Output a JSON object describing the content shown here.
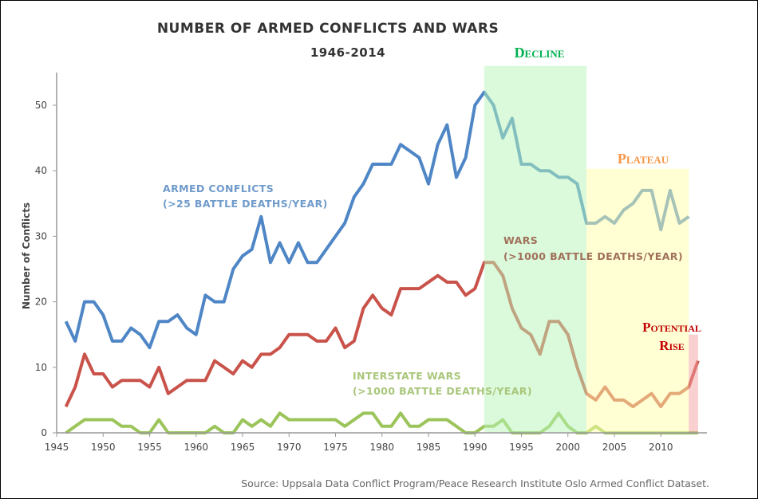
{
  "chart_data": {
    "type": "line",
    "title": "NUMBER OF ARMED CONFLICTS AND WARS",
    "subtitle": "1946-2014",
    "xlabel": "",
    "ylabel": "Number of Conflicts",
    "xlim": [
      1945,
      2015
    ],
    "ylim": [
      0,
      55
    ],
    "xticks": [
      "1945",
      "1950",
      "1955",
      "1960",
      "1965",
      "1970",
      "1975",
      "1980",
      "1985",
      "1990",
      "1995",
      "2000",
      "2005",
      "2010"
    ],
    "yticks": [
      "0",
      "10",
      "20",
      "30",
      "40",
      "50"
    ],
    "x_start": 1946,
    "series": [
      {
        "name": "armed-conflicts",
        "label1": "ARMED CONFLICTS",
        "label2": "(>25 BATTLE DEATHS/YEAR)",
        "color": "#4f86c6",
        "values": [
          17,
          14,
          20,
          20,
          18,
          14,
          14,
          16,
          15,
          13,
          17,
          17,
          18,
          16,
          15,
          21,
          20,
          20,
          25,
          27,
          28,
          33,
          26,
          29,
          26,
          29,
          26,
          26,
          28,
          30,
          32,
          36,
          38,
          41,
          41,
          41,
          44,
          43,
          42,
          38,
          44,
          47,
          39,
          42,
          50,
          52,
          50,
          45,
          48,
          41,
          41,
          40,
          40,
          39,
          39,
          38,
          32,
          32,
          33,
          32,
          34,
          35,
          37,
          37,
          31,
          37,
          32,
          33,
          null
        ]
      },
      {
        "name": "wars",
        "label1": "WARS",
        "label2": "(>1000 BATTLE DEATHS/YEAR)",
        "color": "#c9534a",
        "values": [
          4,
          7,
          12,
          9,
          9,
          7,
          8,
          8,
          8,
          7,
          10,
          6,
          7,
          8,
          8,
          8,
          11,
          10,
          9,
          11,
          10,
          12,
          12,
          13,
          15,
          15,
          15,
          14,
          14,
          16,
          13,
          14,
          19,
          21,
          19,
          18,
          22,
          22,
          22,
          23,
          24,
          23,
          23,
          21,
          22,
          26,
          26,
          24,
          19,
          16,
          15,
          12,
          17,
          17,
          15,
          10,
          6,
          5,
          7,
          5,
          5,
          4,
          5,
          6,
          4,
          6,
          6,
          7,
          11
        ]
      },
      {
        "name": "interstate-wars",
        "label1": "INTERSTATE WARS",
        "label2": "(>1000 BATTLE DEATHS/YEAR)",
        "color": "#9bc45a",
        "values": [
          0,
          1,
          2,
          2,
          2,
          2,
          1,
          1,
          0,
          0,
          2,
          0,
          0,
          0,
          0,
          0,
          1,
          0,
          0,
          2,
          1,
          2,
          1,
          3,
          2,
          2,
          2,
          2,
          2,
          2,
          1,
          2,
          3,
          3,
          1,
          1,
          3,
          1,
          1,
          2,
          2,
          2,
          1,
          0,
          0,
          1,
          1,
          2,
          0,
          0,
          0,
          0,
          1,
          3,
          1,
          0,
          0,
          1,
          0,
          0,
          0,
          0,
          0,
          0,
          0,
          0,
          0,
          0,
          0
        ]
      }
    ],
    "annotations": [
      {
        "label": "Decline",
        "from": 1991,
        "to": 2002,
        "top": 56,
        "color": "#00b050",
        "fill": "#b8f5b8"
      },
      {
        "label": "Plateau",
        "from": 2002,
        "to": 2013,
        "top": 40.3,
        "color": "#f79646",
        "fill": "#ffffa8"
      },
      {
        "label1": "Potential",
        "label2": "Rise",
        "from": 2013,
        "to": 2014,
        "top": 15,
        "color": "#c00000",
        "fill": "#f6a0a0"
      }
    ],
    "source": "Source: Uppsala Data Conflict Program/Peace Research Institute Oslo Armed Conflict Dataset."
  }
}
